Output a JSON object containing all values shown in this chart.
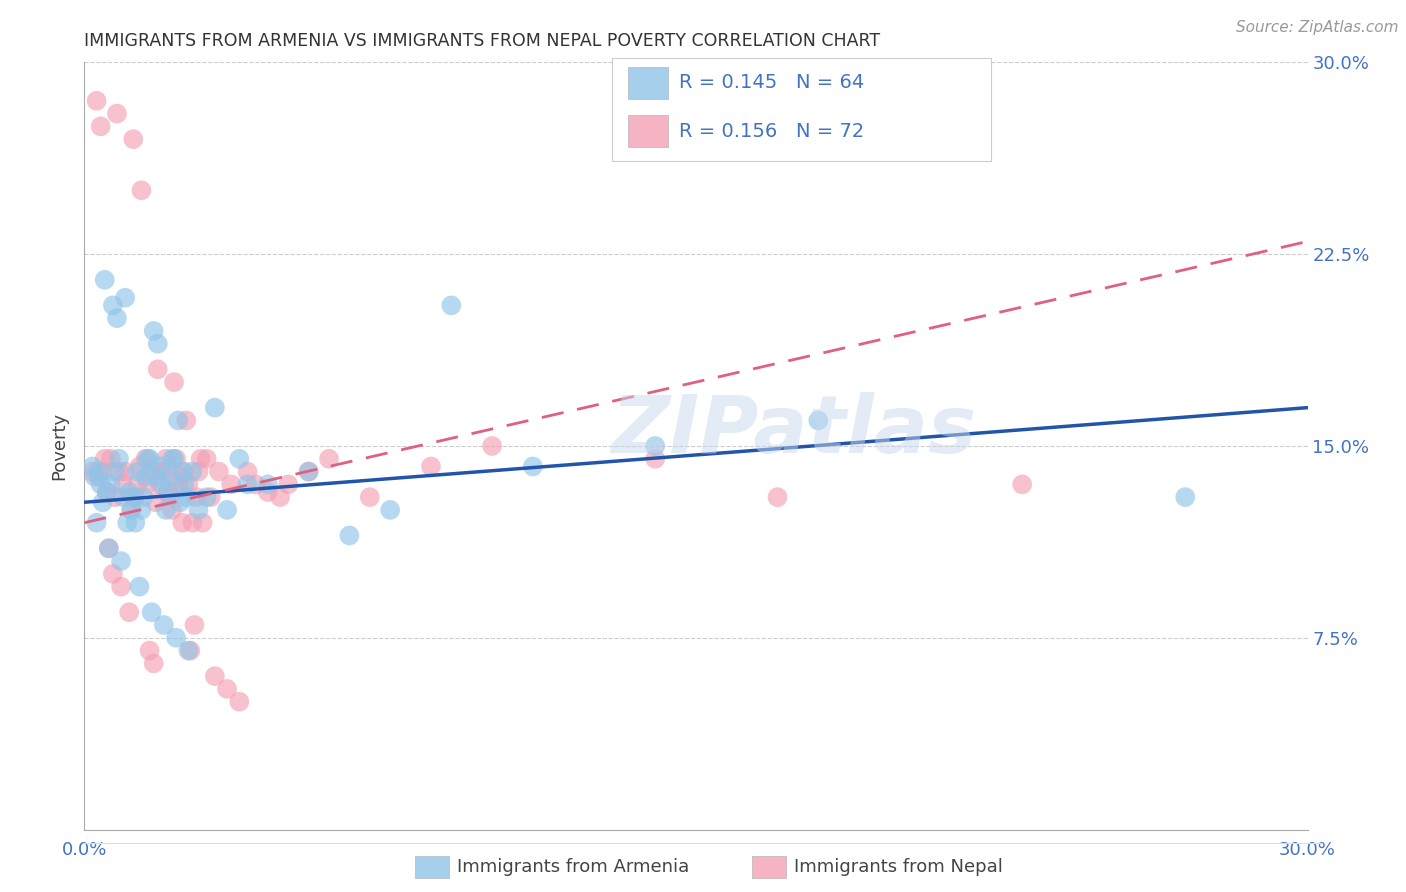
{
  "title": "IMMIGRANTS FROM ARMENIA VS IMMIGRANTS FROM NEPAL POVERTY CORRELATION CHART",
  "source": "Source: ZipAtlas.com",
  "ylabel": "Poverty",
  "background_color": "#ffffff",
  "grid_color": "#cccccc",
  "title_color": "#333333",
  "axis_label_color": "#4472c4",
  "armenia_color": "#90c4e8",
  "nepal_color": "#f4a0b5",
  "armenia_line_color": "#2255aa",
  "nepal_line_color": "#e06080",
  "armenia_R": 0.145,
  "armenia_N": 64,
  "nepal_R": 0.156,
  "nepal_N": 72,
  "legend_label1": "Immigrants from Armenia",
  "legend_label2": "Immigrants from Nepal",
  "watermark": "ZIPatlas",
  "xlim": [
    0.0,
    30.0
  ],
  "ylim": [
    0.0,
    30.0
  ],
  "ytick_values": [
    0.0,
    7.5,
    15.0,
    22.5,
    30.0
  ],
  "ytick_labels_right": [
    "",
    "7.5%",
    "15.0%",
    "22.5%",
    "30.0%"
  ],
  "xtick_values": [
    0,
    15,
    30
  ],
  "xtick_labels": [
    "0.0%",
    "",
    "30.0%"
  ],
  "armenia_x": [
    0.4,
    0.5,
    0.7,
    0.8,
    1.0,
    1.1,
    1.2,
    1.3,
    1.4,
    1.5,
    1.6,
    1.7,
    1.8,
    1.9,
    2.0,
    2.1,
    2.2,
    2.3,
    2.4,
    2.5,
    0.3,
    0.6,
    0.9,
    1.05,
    1.35,
    1.65,
    1.95,
    2.25,
    2.55,
    2.8,
    3.2,
    3.8,
    4.5,
    5.5,
    6.5,
    7.5,
    9.0,
    11.0,
    14.0,
    18.0,
    0.2,
    0.25,
    0.35,
    0.45,
    0.55,
    0.65,
    0.75,
    0.85,
    0.95,
    1.15,
    1.25,
    1.45,
    1.55,
    1.75,
    1.85,
    2.05,
    2.15,
    2.35,
    2.45,
    2.65,
    3.0,
    3.5,
    4.0,
    27.0
  ],
  "armenia_y": [
    13.5,
    21.5,
    20.5,
    20.0,
    20.8,
    13.2,
    13.0,
    14.0,
    12.5,
    13.8,
    14.5,
    19.5,
    19.0,
    13.5,
    12.5,
    13.8,
    14.5,
    16.0,
    14.0,
    13.0,
    12.0,
    11.0,
    10.5,
    12.0,
    9.5,
    8.5,
    8.0,
    7.5,
    7.0,
    12.5,
    16.5,
    14.5,
    13.5,
    14.0,
    11.5,
    12.5,
    20.5,
    14.2,
    15.0,
    16.0,
    14.2,
    13.8,
    14.0,
    12.8,
    13.2,
    13.5,
    14.0,
    14.5,
    13.0,
    12.5,
    12.0,
    13.0,
    14.5,
    13.8,
    14.2,
    13.2,
    14.5,
    12.8,
    13.5,
    14.0,
    13.0,
    12.5,
    13.5,
    13.0
  ],
  "nepal_x": [
    0.2,
    0.3,
    0.4,
    0.5,
    0.6,
    0.7,
    0.8,
    0.9,
    1.0,
    1.1,
    1.2,
    1.3,
    1.4,
    1.5,
    1.6,
    1.7,
    1.8,
    1.9,
    2.0,
    2.1,
    2.2,
    2.3,
    2.4,
    2.5,
    2.6,
    2.7,
    2.8,
    2.9,
    3.0,
    3.2,
    3.5,
    3.8,
    4.2,
    4.8,
    5.5,
    0.35,
    0.45,
    0.55,
    0.65,
    0.75,
    0.85,
    0.95,
    1.15,
    1.25,
    1.35,
    1.55,
    1.65,
    1.75,
    1.85,
    1.95,
    2.05,
    2.15,
    2.25,
    2.35,
    2.45,
    2.55,
    2.65,
    2.75,
    2.85,
    3.1,
    3.3,
    3.6,
    4.0,
    4.5,
    5.0,
    6.0,
    7.0,
    8.5,
    10.0,
    14.0,
    17.0,
    23.0
  ],
  "nepal_y": [
    14.0,
    28.5,
    27.5,
    14.5,
    11.0,
    10.0,
    28.0,
    9.5,
    14.0,
    8.5,
    27.0,
    13.5,
    25.0,
    14.5,
    7.0,
    6.5,
    18.0,
    14.0,
    14.5,
    13.0,
    17.5,
    13.5,
    12.0,
    16.0,
    7.0,
    8.0,
    14.0,
    12.0,
    14.5,
    6.0,
    5.5,
    5.0,
    13.5,
    13.0,
    14.0,
    13.8,
    14.0,
    13.2,
    14.5,
    13.0,
    14.0,
    13.5,
    12.5,
    13.0,
    14.2,
    13.5,
    14.0,
    12.8,
    13.5,
    14.0,
    13.2,
    12.5,
    14.5,
    13.8,
    14.0,
    13.5,
    12.0,
    13.0,
    14.5,
    13.0,
    14.0,
    13.5,
    14.0,
    13.2,
    13.5,
    14.5,
    13.0,
    14.2,
    15.0,
    14.5,
    13.0,
    13.5
  ]
}
